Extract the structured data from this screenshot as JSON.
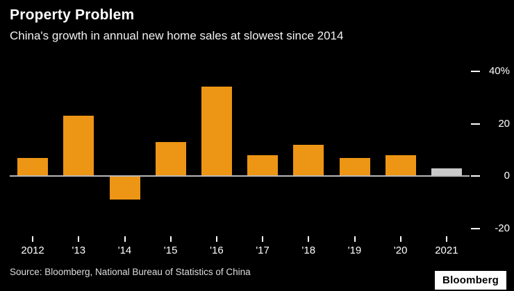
{
  "header": {
    "title": "Property Problem",
    "subtitle": "China's growth in annual new home sales at slowest since 2014"
  },
  "footer": {
    "source": "Source: Bloomberg, National Bureau of Statistics of China",
    "logo": "Bloomberg"
  },
  "colors": {
    "background": "#000000",
    "bar": "#ED9515",
    "highlight_bar": "#C9C9C9",
    "zero_line": "#B9B9B9",
    "text": "#FFFFFF"
  },
  "chart_data": {
    "type": "bar",
    "title": "Property Problem",
    "subtitle": "China's growth in annual new home sales at slowest since 2014",
    "xlabel": "",
    "ylabel": "%",
    "categories": [
      "2012",
      "'13",
      "'14",
      "'15",
      "'16",
      "'17",
      "'18",
      "'19",
      "'20",
      "2021"
    ],
    "values": [
      7,
      23,
      -9,
      13,
      34,
      8,
      12,
      7,
      8,
      3
    ],
    "highlight_index": 9,
    "highlight_note": "2021 bar shown in gray, all others orange",
    "ylim": [
      -26,
      42
    ],
    "yticks": [
      {
        "value": 40,
        "label": "40%"
      },
      {
        "value": 20,
        "label": "20"
      },
      {
        "value": 0,
        "label": "0"
      },
      {
        "value": -20,
        "label": "-20"
      }
    ],
    "grid": "zero line only",
    "legend": "none"
  }
}
